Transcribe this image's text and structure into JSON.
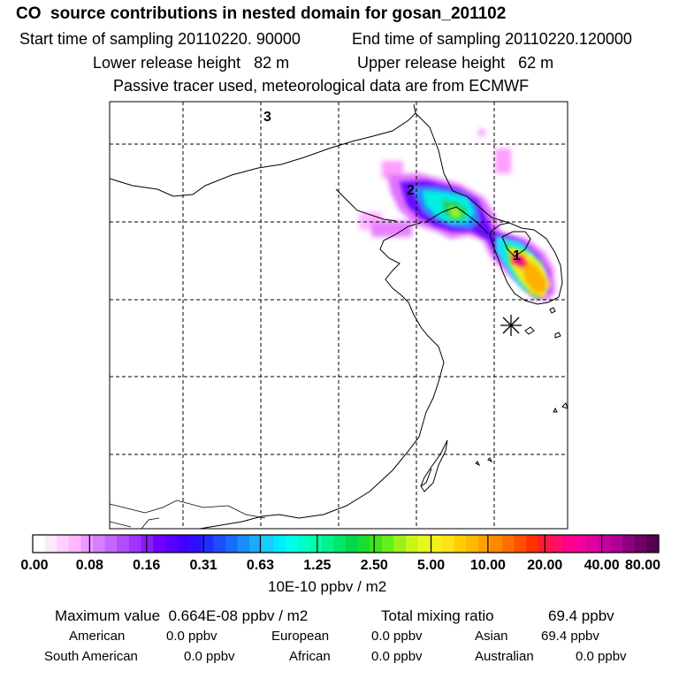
{
  "header": {
    "title": "CO  source contributions in nested domain for gosan_201102",
    "start_time": "Start time of sampling 20110220. 90000",
    "end_time": "End time of sampling 20110220.120000",
    "lower_release": "Lower release height   82 m",
    "upper_release": "Upper release height   62 m",
    "tracer_note": "Passive tracer used, meteorological data are from ECMWF"
  },
  "map": {
    "region_labels": [
      "3",
      "2",
      "1"
    ],
    "receptor_marker": "asterisk-icon"
  },
  "colorbar": {
    "tick_labels": [
      "0.00",
      "0.08",
      "0.16",
      "0.31",
      "0.63",
      "1.25",
      "2.50",
      "5.00",
      "10.00",
      "20.00",
      "40.00",
      "80.00"
    ],
    "unit_label": "10E-10 ppbv / m2",
    "colors": [
      "#ffffff",
      "#ffe8ff",
      "#ffcfff",
      "#ffb6ff",
      "#e999ff",
      "#d47fff",
      "#c466ff",
      "#b24cff",
      "#a033ff",
      "#8c1aff",
      "#7000ff",
      "#5a00ff",
      "#4400ff",
      "#2e0fff",
      "#1f2eff",
      "#1a4dff",
      "#1a6cff",
      "#1a8cff",
      "#1aabff",
      "#1acbff",
      "#00eaff",
      "#00ffe6",
      "#00ffc8",
      "#00ffa8",
      "#00f28a",
      "#00e66b",
      "#00d84c",
      "#1adc2e",
      "#40e61a",
      "#66ee1a",
      "#9af21a",
      "#c8f61a",
      "#e8f81a",
      "#f6f01a",
      "#ffe01a",
      "#ffce00",
      "#ffb800",
      "#ffa000",
      "#ff8800",
      "#ff6e00",
      "#ff5000",
      "#ff3200",
      "#ff1a33",
      "#ff0f66",
      "#ff008c",
      "#f20099",
      "#e000a0",
      "#c800a0",
      "#ad0099",
      "#8c0080",
      "#700066",
      "#550050"
    ]
  },
  "summary": {
    "max_label": "Maximum value  0.664E-08 ppbv / m2",
    "total_label": "Total mixing ratio",
    "total_value": "69.4 ppbv",
    "regions": [
      {
        "name": "American",
        "value": "0.0 ppbv"
      },
      {
        "name": "European",
        "value": "0.0 ppbv"
      },
      {
        "name": "Asian",
        "value": "69.4 ppbv"
      },
      {
        "name": "South American",
        "value": "0.0 ppbv"
      },
      {
        "name": "African",
        "value": "0.0 ppbv"
      },
      {
        "name": "Australian",
        "value": "0.0 ppbv"
      }
    ]
  }
}
